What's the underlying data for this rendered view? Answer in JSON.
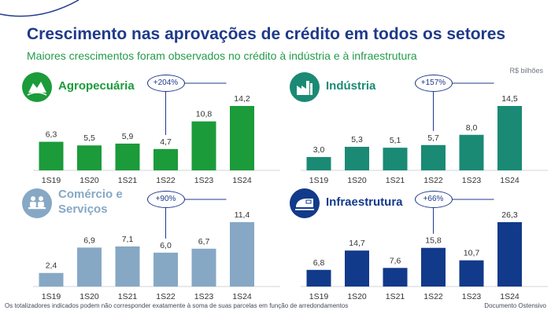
{
  "header": {
    "title": "Crescimento nas aprovações de crédito em todos os setores",
    "subtitle": "Maiores crescimentos foram observados no crédito à indústria e à infraestrutura",
    "unit": "R$ bilhões"
  },
  "footer": {
    "note": "Os totalizadores indicados podem não corresponder exatamente à soma de suas parcelas em função de arredondamentos",
    "doc_label": "Documento Ostensivo"
  },
  "colors": {
    "agro": "#1b9b3a",
    "industria": "#1a8a74",
    "comercio": "#86a8c5",
    "infra": "#123a8a",
    "accent": "#1f3a8a"
  },
  "panels": [
    {
      "name": "Agropecuária",
      "title_lines": [
        "Agropecuária"
      ],
      "growth": "+204%",
      "icon": "farm-icon",
      "color": "#1b9b3a",
      "title_color": "#1b9b3a",
      "callout_from": 3,
      "callout_to": 5
    },
    {
      "name": "Indústria",
      "title_lines": [
        "Indústria"
      ],
      "growth": "+157%",
      "icon": "factory-icon",
      "color": "#1a8a74",
      "title_color": "#1a8a74",
      "callout_from": 3,
      "callout_to": 5
    },
    {
      "name": "Comércio e Serviços",
      "title_lines": [
        "Comércio e",
        "Serviços"
      ],
      "growth": "+90%",
      "icon": "people-icon",
      "color": "#86a8c5",
      "title_color": "#86a8c5",
      "callout_from": 3,
      "callout_to": 5
    },
    {
      "name": "Infraestrutura",
      "title_lines": [
        "Infraestrutura"
      ],
      "growth": "+66%",
      "icon": "train-icon",
      "color": "#123a8a",
      "title_color": "#123a8a",
      "callout_from": 3,
      "callout_to": 5
    }
  ],
  "chart_data": [
    {
      "type": "bar",
      "title": "Agropecuária",
      "categories": [
        "1S19",
        "1S20",
        "1S21",
        "1S22",
        "1S23",
        "1S24"
      ],
      "values": [
        6.3,
        5.5,
        5.9,
        4.7,
        10.8,
        14.2
      ],
      "labels": [
        "6,3",
        "5,5",
        "5,9",
        "4,7",
        "10,8",
        "14,2"
      ],
      "ylim": [
        0,
        14.2
      ],
      "ylabel": "R$ bilhões"
    },
    {
      "type": "bar",
      "title": "Indústria",
      "categories": [
        "1S19",
        "1S20",
        "1S21",
        "1S22",
        "1S23",
        "1S24"
      ],
      "values": [
        3.0,
        5.3,
        5.1,
        5.7,
        8.0,
        14.5
      ],
      "labels": [
        "3,0",
        "5,3",
        "5,1",
        "5,7",
        "8,0",
        "14,5"
      ],
      "ylim": [
        0,
        14.5
      ],
      "ylabel": "R$ bilhões"
    },
    {
      "type": "bar",
      "title": "Comércio e Serviços",
      "categories": [
        "1S19",
        "1S20",
        "1S21",
        "1S22",
        "1S23",
        "1S24"
      ],
      "values": [
        2.4,
        6.9,
        7.1,
        6.0,
        6.7,
        11.4
      ],
      "labels": [
        "2,4",
        "6,9",
        "7,1",
        "6,0",
        "6,7",
        "11,4"
      ],
      "ylim": [
        0,
        11.4
      ],
      "ylabel": "R$ bilhões"
    },
    {
      "type": "bar",
      "title": "Infraestrutura",
      "categories": [
        "1S19",
        "1S20",
        "1S21",
        "1S22",
        "1S23",
        "1S24"
      ],
      "values": [
        6.8,
        14.7,
        7.6,
        15.8,
        10.7,
        26.3
      ],
      "labels": [
        "6,8",
        "14,7",
        "7,6",
        "15,8",
        "10,7",
        "26,3"
      ],
      "ylim": [
        0,
        26.3
      ],
      "ylabel": "R$ bilhões"
    }
  ]
}
